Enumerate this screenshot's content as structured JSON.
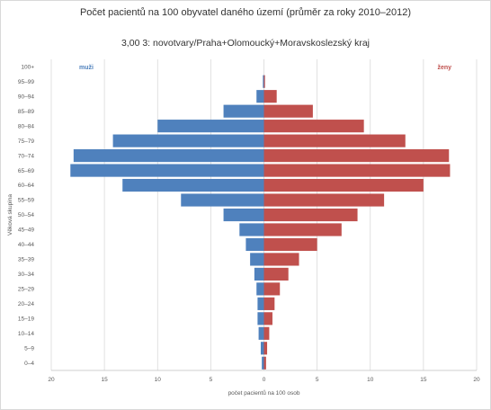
{
  "chart_data": {
    "type": "bar",
    "title": "Počet pacientů na 100 obyvatel daného území (průměr za roky 2010–2012)",
    "subtitle": "3,00 3: novotvary/Praha+Olomoucký+Moravskoslezský  kraj",
    "xlabel": "počet pacientů na 100 osob",
    "ylabel": "Věková skupina",
    "categories": [
      "0–4",
      "5–9",
      "10–14",
      "15–19",
      "20–24",
      "25–29",
      "30–34",
      "35–39",
      "40–44",
      "45–49",
      "50–54",
      "55–59",
      "60–64",
      "65–69",
      "70–74",
      "75–79",
      "80–84",
      "85–89",
      "90–94",
      "95–99",
      "100+"
    ],
    "series": [
      {
        "name": "muži",
        "color": "#4f81bd",
        "values": [
          0.2,
          0.3,
          0.5,
          0.6,
          0.6,
          0.7,
          0.9,
          1.3,
          1.7,
          2.3,
          3.8,
          7.8,
          13.3,
          18.2,
          17.9,
          14.2,
          10.0,
          3.8,
          0.7,
          0.1,
          0.0
        ]
      },
      {
        "name": "ženy",
        "color": "#c0504d",
        "values": [
          0.2,
          0.3,
          0.5,
          0.8,
          1.0,
          1.5,
          2.3,
          3.3,
          5.0,
          7.3,
          8.8,
          11.3,
          15.0,
          17.5,
          17.4,
          13.3,
          9.4,
          4.6,
          1.2,
          0.1,
          0.0
        ]
      }
    ],
    "xlim": [
      -20,
      20
    ],
    "xticks": [
      "20",
      "15",
      "10",
      "5",
      "0",
      "5",
      "10",
      "15",
      "20"
    ],
    "legend": [
      "muži",
      "ženy"
    ],
    "grid": "vertical",
    "legend_placement": "top-left and top-right"
  }
}
